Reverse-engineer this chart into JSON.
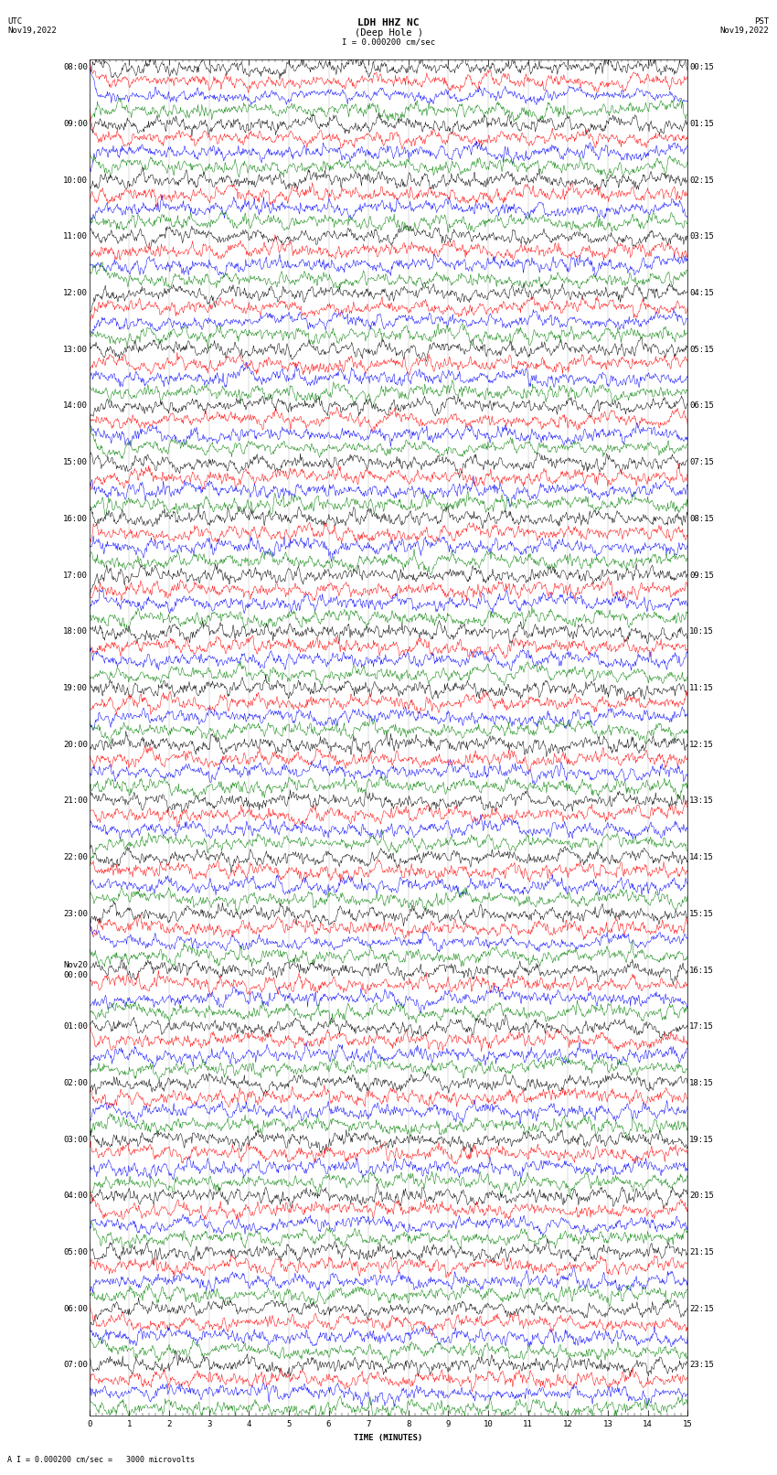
{
  "title_line1": "LDH HHZ NC",
  "title_line2": "(Deep Hole )",
  "scale_text": "I = 0.000200 cm/sec",
  "bottom_note": "A I = 0.000200 cm/sec =   3000 microvolts",
  "xlabel": "TIME (MINUTES)",
  "xlim": [
    0,
    15
  ],
  "xticks": [
    0,
    1,
    2,
    3,
    4,
    5,
    6,
    7,
    8,
    9,
    10,
    11,
    12,
    13,
    14,
    15
  ],
  "bg_color": "#ffffff",
  "trace_colors": [
    "#000000",
    "#ff0000",
    "#0000ff",
    "#008000"
  ],
  "left_times_utc": [
    "08:00",
    "",
    "",
    "",
    "09:00",
    "",
    "",
    "",
    "10:00",
    "",
    "",
    "",
    "11:00",
    "",
    "",
    "",
    "12:00",
    "",
    "",
    "",
    "13:00",
    "",
    "",
    "",
    "14:00",
    "",
    "",
    "",
    "15:00",
    "",
    "",
    "",
    "16:00",
    "",
    "",
    "",
    "17:00",
    "",
    "",
    "",
    "18:00",
    "",
    "",
    "",
    "19:00",
    "",
    "",
    "",
    "20:00",
    "",
    "",
    "",
    "21:00",
    "",
    "",
    "",
    "22:00",
    "",
    "",
    "",
    "23:00",
    "",
    "",
    "",
    "Nov20\n00:00",
    "",
    "",
    "",
    "01:00",
    "",
    "",
    "",
    "02:00",
    "",
    "",
    "",
    "03:00",
    "",
    "",
    "",
    "04:00",
    "",
    "",
    "",
    "05:00",
    "",
    "",
    "",
    "06:00",
    "",
    "",
    "",
    "07:00",
    "",
    "",
    ""
  ],
  "right_times_pst": [
    "00:15",
    "",
    "",
    "",
    "01:15",
    "",
    "",
    "",
    "02:15",
    "",
    "",
    "",
    "03:15",
    "",
    "",
    "",
    "04:15",
    "",
    "",
    "",
    "05:15",
    "",
    "",
    "",
    "06:15",
    "",
    "",
    "",
    "07:15",
    "",
    "",
    "",
    "08:15",
    "",
    "",
    "",
    "09:15",
    "",
    "",
    "",
    "10:15",
    "",
    "",
    "",
    "11:15",
    "",
    "",
    "",
    "12:15",
    "",
    "",
    "",
    "13:15",
    "",
    "",
    "",
    "14:15",
    "",
    "",
    "",
    "15:15",
    "",
    "",
    "",
    "16:15",
    "",
    "",
    "",
    "17:15",
    "",
    "",
    "",
    "18:15",
    "",
    "",
    "",
    "19:15",
    "",
    "",
    "",
    "20:15",
    "",
    "",
    "",
    "21:15",
    "",
    "",
    "",
    "22:15",
    "",
    "",
    "",
    "23:15",
    "",
    "",
    ""
  ],
  "n_rows": 96,
  "font_size_title": 8,
  "font_size_labels": 6.5,
  "font_size_axis": 6.5
}
